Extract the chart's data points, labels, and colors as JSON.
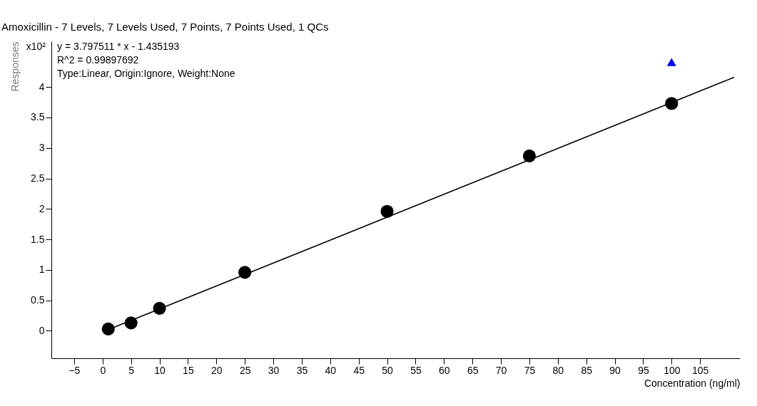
{
  "chart_data": {
    "type": "scatter",
    "title": "Amoxicillin - 7 Levels, 7 Levels Used, 7 Points, 7 Points Used, 1 QCs",
    "xlabel": "Concentration (ng/ml)",
    "ylabel": "Responses",
    "annotations": [
      "x10²",
      "y = 3.797511 * x  - 1.435193",
      "R^2 = 0.99897692",
      "Type:Linear, Origin:Ignore, Weight:None"
    ],
    "series": [
      {
        "type": "line",
        "color": "#000000",
        "x": [
          1,
          111
        ],
        "values": [
          0.02,
          4.16
        ]
      },
      {
        "type": "scatter",
        "color": "#000000",
        "marker": "circle",
        "x": [
          1,
          5,
          10,
          25,
          50,
          75,
          100
        ],
        "values": [
          0.03,
          0.13,
          0.37,
          0.96,
          1.96,
          2.87,
          3.73
        ]
      },
      {
        "type": "scatter",
        "color": "#0000ff",
        "marker": "triangle",
        "x": [
          100
        ],
        "values": [
          4.41
        ]
      }
    ],
    "xlim": [
      -9,
      112
    ],
    "xticks": [
      -5,
      0,
      5,
      10,
      15,
      20,
      25,
      30,
      35,
      40,
      45,
      50,
      55,
      60,
      65,
      70,
      75,
      80,
      85,
      90,
      95,
      100,
      105
    ],
    "ylim": [
      -0.45,
      4.75
    ],
    "yticks": [
      0,
      0.5,
      1,
      1.5,
      2,
      2.5,
      3,
      3.5,
      4
    ],
    "grid": false
  }
}
